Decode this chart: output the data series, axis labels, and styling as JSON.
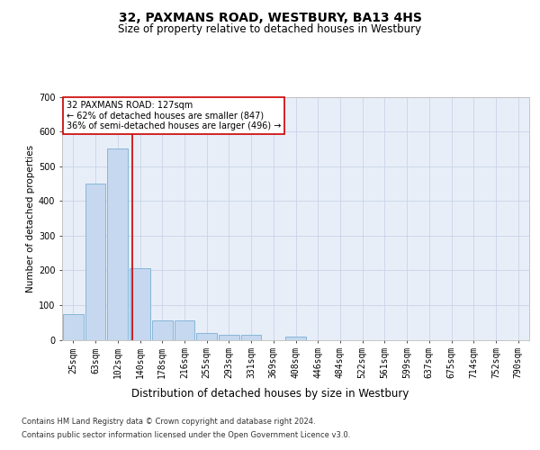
{
  "title": "32, PAXMANS ROAD, WESTBURY, BA13 4HS",
  "subtitle": "Size of property relative to detached houses in Westbury",
  "xlabel": "Distribution of detached houses by size in Westbury",
  "ylabel": "Number of detached properties",
  "footer_line1": "Contains HM Land Registry data © Crown copyright and database right 2024.",
  "footer_line2": "Contains public sector information licensed under the Open Government Licence v3.0.",
  "bin_labels": [
    "25sqm",
    "63sqm",
    "102sqm",
    "140sqm",
    "178sqm",
    "216sqm",
    "255sqm",
    "293sqm",
    "331sqm",
    "369sqm",
    "408sqm",
    "446sqm",
    "484sqm",
    "522sqm",
    "561sqm",
    "599sqm",
    "637sqm",
    "675sqm",
    "714sqm",
    "752sqm",
    "790sqm"
  ],
  "bin_values": [
    75,
    450,
    550,
    205,
    55,
    55,
    20,
    14,
    14,
    0,
    10,
    0,
    0,
    0,
    0,
    0,
    0,
    0,
    0,
    0,
    0
  ],
  "bar_color": "#c5d8ef",
  "bar_edge_color": "#7bafd4",
  "grid_color": "#c8d4e8",
  "background_color": "#e8eef8",
  "red_line_color": "#cc0000",
  "annotation_text": "32 PAXMANS ROAD: 127sqm\n← 62% of detached houses are smaller (847)\n36% of semi-detached houses are larger (496) →",
  "annotation_box_color": "#cc0000",
  "ylim": [
    0,
    700
  ],
  "yticks": [
    0,
    100,
    200,
    300,
    400,
    500,
    600,
    700
  ],
  "title_fontsize": 10,
  "subtitle_fontsize": 8.5,
  "ylabel_fontsize": 7.5,
  "xlabel_fontsize": 8.5,
  "tick_fontsize": 7,
  "annotation_fontsize": 7,
  "footer_fontsize": 6
}
